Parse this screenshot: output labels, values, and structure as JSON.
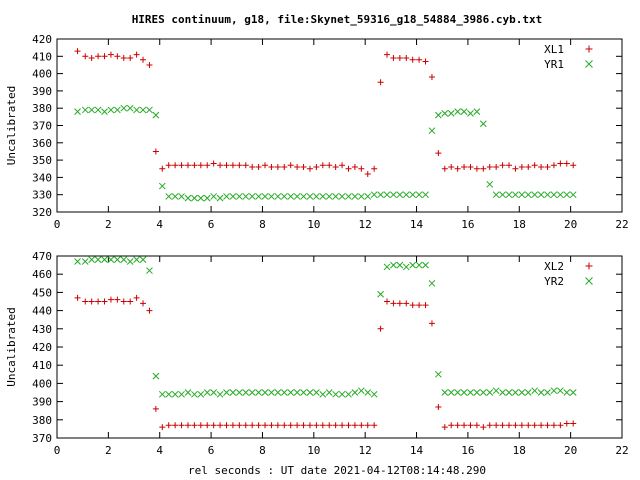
{
  "title": "HIRES continuum, g18, file:Skynet_59316_g18_54884_3986.cyb.txt",
  "xlabel": "rel seconds : UT date 2021-04-12T08:14:48.290",
  "colors": {
    "red": "#cc0000",
    "green": "#22aa22"
  },
  "chart_data": [
    {
      "type": "scatter",
      "ylabel": "Uncalibrated",
      "xlim": [
        0,
        22
      ],
      "ylim": [
        320,
        420
      ],
      "xticks": [
        0,
        2,
        4,
        6,
        8,
        10,
        12,
        14,
        16,
        18,
        20,
        22
      ],
      "yticks": [
        320,
        330,
        340,
        350,
        360,
        370,
        380,
        390,
        400,
        410,
        420
      ],
      "legend_position": "top-right",
      "series": [
        {
          "name": "XL1",
          "marker": "plus",
          "color": "#cc0000",
          "x": [
            0.8,
            1.1,
            1.35,
            1.6,
            1.85,
            2.1,
            2.35,
            2.6,
            2.85,
            3.1,
            3.35,
            3.6,
            3.85,
            4.1,
            4.35,
            4.6,
            4.85,
            5.1,
            5.35,
            5.6,
            5.85,
            6.1,
            6.35,
            6.6,
            6.85,
            7.1,
            7.35,
            7.6,
            7.85,
            8.1,
            8.35,
            8.6,
            8.85,
            9.1,
            9.35,
            9.6,
            9.85,
            10.1,
            10.35,
            10.6,
            10.85,
            11.1,
            11.35,
            11.6,
            11.85,
            12.1,
            12.35,
            12.6,
            12.85,
            13.1,
            13.35,
            13.6,
            13.85,
            14.1,
            14.35,
            14.6,
            14.85,
            15.1,
            15.35,
            15.6,
            15.85,
            16.1,
            16.35,
            16.6,
            16.85,
            17.1,
            17.35,
            17.6,
            17.85,
            18.1,
            18.35,
            18.6,
            18.85,
            19.1,
            19.35,
            19.6,
            19.85,
            20.1
          ],
          "y": [
            413,
            410,
            409,
            410,
            410,
            411,
            410,
            409,
            409,
            411,
            408,
            405,
            355,
            345,
            347,
            347,
            347,
            347,
            347,
            347,
            347,
            348,
            347,
            347,
            347,
            347,
            347,
            346,
            346,
            347,
            346,
            346,
            346,
            347,
            346,
            346,
            345,
            346,
            347,
            347,
            346,
            347,
            345,
            346,
            345,
            342,
            345,
            395,
            411,
            409,
            409,
            409,
            408,
            408,
            407,
            398,
            354,
            345,
            346,
            345,
            346,
            346,
            345,
            345,
            346,
            346,
            347,
            347,
            345,
            346,
            346,
            347,
            346,
            346,
            347,
            348,
            348,
            347
          ]
        },
        {
          "name": "YR1",
          "marker": "cross",
          "color": "#22aa22",
          "x": [
            0.8,
            1.1,
            1.35,
            1.6,
            1.85,
            2.1,
            2.35,
            2.6,
            2.85,
            3.1,
            3.35,
            3.6,
            3.85,
            4.1,
            4.35,
            4.6,
            4.85,
            5.1,
            5.35,
            5.6,
            5.85,
            6.1,
            6.35,
            6.6,
            6.85,
            7.1,
            7.35,
            7.6,
            7.85,
            8.1,
            8.35,
            8.6,
            8.85,
            9.1,
            9.35,
            9.6,
            9.85,
            10.1,
            10.35,
            10.6,
            10.85,
            11.1,
            11.35,
            11.6,
            11.85,
            12.1,
            12.35,
            12.6,
            12.85,
            13.1,
            13.35,
            13.6,
            13.85,
            14.1,
            14.35,
            14.6,
            14.85,
            15.1,
            15.35,
            15.6,
            15.85,
            16.1,
            16.35,
            16.6,
            16.85,
            17.1,
            17.35,
            17.6,
            17.85,
            18.1,
            18.35,
            18.6,
            18.85,
            19.1,
            19.35,
            19.6,
            19.85,
            20.1
          ],
          "y": [
            378,
            379,
            379,
            379,
            378,
            379,
            379,
            380,
            380,
            379,
            379,
            379,
            376,
            335,
            329,
            329,
            329,
            328,
            328,
            328,
            328,
            329,
            328,
            329,
            329,
            329,
            329,
            329,
            329,
            329,
            329,
            329,
            329,
            329,
            329,
            329,
            329,
            329,
            329,
            329,
            329,
            329,
            329,
            329,
            329,
            329,
            330,
            330,
            330,
            330,
            330,
            330,
            330,
            330,
            330,
            367,
            376,
            377,
            377,
            378,
            378,
            377,
            378,
            371,
            336,
            330,
            330,
            330,
            330,
            330,
            330,
            330,
            330,
            330,
            330,
            330,
            330,
            330
          ]
        }
      ]
    },
    {
      "type": "scatter",
      "ylabel": "Uncalibrated",
      "xlim": [
        0,
        22
      ],
      "ylim": [
        370,
        470
      ],
      "xticks": [
        0,
        2,
        4,
        6,
        8,
        10,
        12,
        14,
        16,
        18,
        20,
        22
      ],
      "yticks": [
        370,
        380,
        390,
        400,
        410,
        420,
        430,
        440,
        450,
        460,
        470
      ],
      "legend_position": "top-right",
      "series": [
        {
          "name": "XL2",
          "marker": "plus",
          "color": "#cc0000",
          "x": [
            0.8,
            1.1,
            1.35,
            1.6,
            1.85,
            2.1,
            2.35,
            2.6,
            2.85,
            3.1,
            3.35,
            3.6,
            3.85,
            4.1,
            4.35,
            4.6,
            4.85,
            5.1,
            5.35,
            5.6,
            5.85,
            6.1,
            6.35,
            6.6,
            6.85,
            7.1,
            7.35,
            7.6,
            7.85,
            8.1,
            8.35,
            8.6,
            8.85,
            9.1,
            9.35,
            9.6,
            9.85,
            10.1,
            10.35,
            10.6,
            10.85,
            11.1,
            11.35,
            11.6,
            11.85,
            12.1,
            12.35,
            12.6,
            12.85,
            13.1,
            13.35,
            13.6,
            13.85,
            14.1,
            14.35,
            14.6,
            14.85,
            15.1,
            15.35,
            15.6,
            15.85,
            16.1,
            16.35,
            16.6,
            16.85,
            17.1,
            17.35,
            17.6,
            17.85,
            18.1,
            18.35,
            18.6,
            18.85,
            19.1,
            19.35,
            19.6,
            19.85,
            20.1
          ],
          "y": [
            447,
            445,
            445,
            445,
            445,
            446,
            446,
            445,
            445,
            447,
            444,
            440,
            386,
            376,
            377,
            377,
            377,
            377,
            377,
            377,
            377,
            377,
            377,
            377,
            377,
            377,
            377,
            377,
            377,
            377,
            377,
            377,
            377,
            377,
            377,
            377,
            377,
            377,
            377,
            377,
            377,
            377,
            377,
            377,
            377,
            377,
            377,
            430,
            445,
            444,
            444,
            444,
            443,
            443,
            443,
            433,
            387,
            376,
            377,
            377,
            377,
            377,
            377,
            376,
            377,
            377,
            377,
            377,
            377,
            377,
            377,
            377,
            377,
            377,
            377,
            377,
            378,
            378
          ]
        },
        {
          "name": "YR2",
          "marker": "cross",
          "color": "#22aa22",
          "x": [
            0.8,
            1.1,
            1.35,
            1.6,
            1.85,
            2.1,
            2.35,
            2.6,
            2.85,
            3.1,
            3.35,
            3.6,
            3.85,
            4.1,
            4.35,
            4.6,
            4.85,
            5.1,
            5.35,
            5.6,
            5.85,
            6.1,
            6.35,
            6.6,
            6.85,
            7.1,
            7.35,
            7.6,
            7.85,
            8.1,
            8.35,
            8.6,
            8.85,
            9.1,
            9.35,
            9.6,
            9.85,
            10.1,
            10.35,
            10.6,
            10.85,
            11.1,
            11.35,
            11.6,
            11.85,
            12.1,
            12.35,
            12.6,
            12.85,
            13.1,
            13.35,
            13.6,
            13.85,
            14.1,
            14.35,
            14.6,
            14.85,
            15.1,
            15.35,
            15.6,
            15.85,
            16.1,
            16.35,
            16.6,
            16.85,
            17.1,
            17.35,
            17.6,
            17.85,
            18.1,
            18.35,
            18.6,
            18.85,
            19.1,
            19.35,
            19.6,
            19.85,
            20.1
          ],
          "y": [
            467,
            467,
            468,
            468,
            468,
            468,
            468,
            468,
            467,
            468,
            468,
            462,
            404,
            394,
            394,
            394,
            394,
            395,
            394,
            394,
            395,
            395,
            394,
            395,
            395,
            395,
            395,
            395,
            395,
            395,
            395,
            395,
            395,
            395,
            395,
            395,
            395,
            395,
            394,
            395,
            394,
            394,
            394,
            395,
            396,
            395,
            394,
            449,
            464,
            465,
            465,
            464,
            465,
            465,
            465,
            455,
            405,
            395,
            395,
            395,
            395,
            395,
            395,
            395,
            395,
            396,
            395,
            395,
            395,
            395,
            395,
            396,
            395,
            395,
            396,
            396,
            395,
            395
          ]
        }
      ]
    }
  ]
}
